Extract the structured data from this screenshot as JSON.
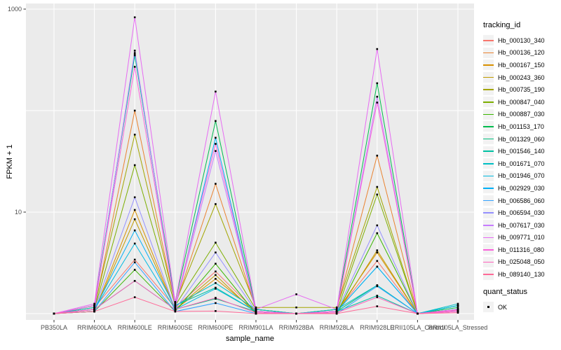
{
  "chart_data": {
    "type": "line",
    "title": "",
    "xlabel": "sample_name",
    "ylabel": "FPKM + 1",
    "y_scale": "log10",
    "ylim": [
      1,
      1000
    ],
    "y_ticks": [
      {
        "label": "1000",
        "value": 1000
      },
      {
        "label": "10",
        "value": 10
      }
    ],
    "y_gridlines": [
      1000,
      100,
      10,
      1
    ],
    "categories": [
      "PB350LA",
      "RRIM600LA",
      "RRIM600LE",
      "RRIM600SE",
      "RRIM600PE",
      "RRIM901LA",
      "RRIM928BA",
      "RRIM928LA",
      "RRIM928LE",
      "RRII105LA_Control",
      "RRII105LA_Stressed"
    ],
    "legend": {
      "series_title": "tracking_id",
      "status_title": "quant_status",
      "status_label": "OK",
      "position": "right"
    },
    "grid": true,
    "colors": {
      "panel_bg": "#EBEBEB",
      "gridline": "#FFFFFF",
      "tick_text": "#4D4D4D",
      "tick_mark": "#333333",
      "point": "#000000",
      "legend_key_bg": "#F2F2F2"
    },
    "point_marker": "square",
    "series": [
      {
        "id": "Hb_000130_340",
        "color": "#F8766D",
        "values": [
          1.0,
          1.15,
          3.4,
          1.15,
          2.6,
          1.05,
          1.0,
          1.05,
          3.3,
          1.0,
          1.05
        ]
      },
      {
        "id": "Hb_000136_120",
        "color": "#EA8331",
        "values": [
          1.0,
          1.1,
          100,
          1.2,
          19,
          1.1,
          1.0,
          1.1,
          36,
          1.0,
          1.1
        ]
      },
      {
        "id": "Hb_000167_150",
        "color": "#D89000",
        "values": [
          1.0,
          1.05,
          10.5,
          1.1,
          2.2,
          1.05,
          1.0,
          1.05,
          4.0,
          1.0,
          1.05
        ]
      },
      {
        "id": "Hb_000243_360",
        "color": "#C09B00",
        "values": [
          1.0,
          1.05,
          8.5,
          1.1,
          2.4,
          1.0,
          1.0,
          1.0,
          4.2,
          1.0,
          1.05
        ]
      },
      {
        "id": "Hb_000735_190",
        "color": "#A3A500",
        "values": [
          1.0,
          1.15,
          58,
          1.25,
          12,
          1.15,
          1.15,
          1.15,
          17.7,
          1.0,
          1.1
        ]
      },
      {
        "id": "Hb_000847_040",
        "color": "#7CAE00",
        "values": [
          1.0,
          1.1,
          29,
          1.2,
          5.0,
          1.1,
          1.0,
          1.05,
          14.9,
          1.0,
          1.05
        ]
      },
      {
        "id": "Hb_000887_030",
        "color": "#39B600",
        "values": [
          1.0,
          1.05,
          2.7,
          1.05,
          3.1,
          1.0,
          1.0,
          1.0,
          6.2,
          1.0,
          1.1
        ]
      },
      {
        "id": "Hb_001153_170",
        "color": "#00BB4E",
        "values": [
          1.0,
          1.2,
          350,
          1.3,
          79,
          1.1,
          1.0,
          1.1,
          186,
          1.0,
          1.15
        ]
      },
      {
        "id": "Hb_001329_060",
        "color": "#00BF7D",
        "values": [
          1.0,
          1.1,
          2.1,
          1.1,
          1.4,
          1.05,
          1.0,
          1.05,
          1.9,
          1.0,
          1.2
        ]
      },
      {
        "id": "Hb_001546_140",
        "color": "#00C1A3",
        "values": [
          1.0,
          1.2,
          360,
          1.2,
          1.8,
          1.05,
          1.0,
          1.05,
          1.5,
          1.0,
          1.2
        ]
      },
      {
        "id": "Hb_001671_070",
        "color": "#00BFC4",
        "values": [
          1.0,
          1.15,
          370,
          1.2,
          2.0,
          1.1,
          1.0,
          1.1,
          1.9,
          1.0,
          1.25
        ]
      },
      {
        "id": "Hb_001946_070",
        "color": "#00BAE0",
        "values": [
          1.0,
          1.1,
          4.9,
          1.1,
          1.76,
          1.05,
          1.0,
          1.05,
          2.9,
          1.0,
          1.2
        ]
      },
      {
        "id": "Hb_002929_030",
        "color": "#00B0F6",
        "values": [
          1.0,
          1.1,
          6.6,
          1.15,
          54,
          1.05,
          1.0,
          1.05,
          2.9,
          1.0,
          1.1
        ]
      },
      {
        "id": "Hb_006586_060",
        "color": "#35A2FF",
        "values": [
          1.0,
          1.05,
          3.2,
          1.05,
          1.27,
          1.0,
          1.0,
          1.0,
          1.86,
          1.0,
          1.1
        ]
      },
      {
        "id": "Hb_006594_030",
        "color": "#9590FF",
        "values": [
          1.0,
          1.1,
          14,
          1.1,
          4.0,
          1.05,
          1.0,
          1.05,
          7.4,
          1.0,
          1.05
        ]
      },
      {
        "id": "Hb_007617_030",
        "color": "#C77CFF",
        "values": [
          1.0,
          1.1,
          390,
          1.15,
          40,
          1.05,
          1.0,
          1.05,
          137,
          1.0,
          1.05
        ]
      },
      {
        "id": "Hb_009771_010",
        "color": "#E76BF3",
        "values": [
          1.0,
          1.25,
          830,
          1.3,
          154,
          1.1,
          1.55,
          1.1,
          404,
          1.0,
          1.1
        ]
      },
      {
        "id": "Hb_011316_080",
        "color": "#FA62DB",
        "values": [
          1.0,
          1.2,
          270,
          1.2,
          47,
          1.05,
          1.0,
          1.05,
          120,
          1.0,
          1.05
        ]
      },
      {
        "id": "Hb_025048_050",
        "color": "#FF62BC",
        "values": [
          1.0,
          1.1,
          2.1,
          1.1,
          1.43,
          1.02,
          1.0,
          1.02,
          1.45,
          1.0,
          1.08
        ]
      },
      {
        "id": "Hb_089140_130",
        "color": "#FF6A98",
        "values": [
          1.0,
          1.05,
          1.45,
          1.05,
          1.06,
          1.0,
          1.0,
          1.0,
          1.18,
          1.0,
          1.02
        ]
      }
    ]
  }
}
